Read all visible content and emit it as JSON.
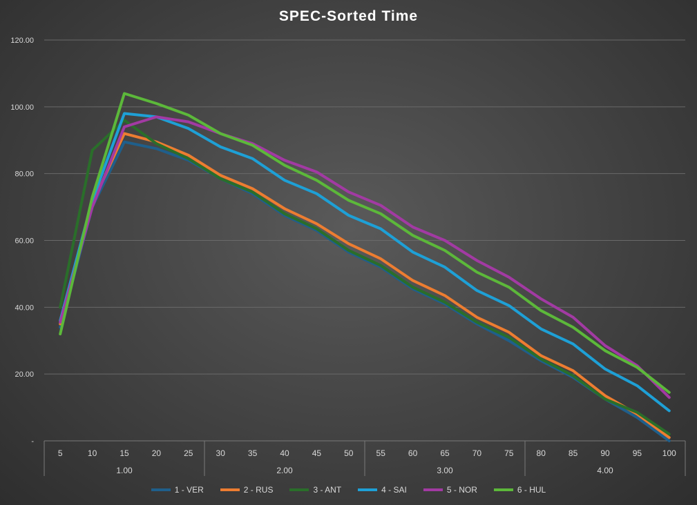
{
  "chart_data": {
    "type": "line",
    "title": "SPEC-Sorted Time",
    "xlabel": "",
    "ylabel": "",
    "ylim": [
      0,
      120
    ],
    "y_ticks": [
      "-",
      "20.00",
      "40.00",
      "60.00",
      "80.00",
      "100.00",
      "120.00"
    ],
    "categories": [
      "5",
      "10",
      "15",
      "20",
      "25",
      "30",
      "35",
      "40",
      "45",
      "50",
      "55",
      "60",
      "65",
      "70",
      "75",
      "80",
      "85",
      "90",
      "95",
      "100"
    ],
    "groups": [
      {
        "label": "1.00",
        "span": 5
      },
      {
        "label": "2.00",
        "span": 5
      },
      {
        "label": "3.00",
        "span": 5
      },
      {
        "label": "4.00",
        "span": 5
      }
    ],
    "grid": true,
    "legend_position": "bottom",
    "series": [
      {
        "name": "1 - VER",
        "color": "#1f5f8b",
        "values": [
          34,
          70,
          89.5,
          87.5,
          84,
          78.5,
          74,
          67.5,
          63,
          56.5,
          52,
          45.5,
          41,
          35,
          30,
          24,
          19,
          12.5,
          7,
          0
        ]
      },
      {
        "name": "2 - RUS",
        "color": "#ed7d31",
        "values": [
          35,
          71,
          92,
          89.5,
          85.5,
          79.5,
          75.5,
          69.5,
          65,
          59,
          54.5,
          48,
          43.5,
          37,
          32.5,
          25.5,
          21,
          13.5,
          8,
          1
        ]
      },
      {
        "name": "3 - ANT",
        "color": "#2a6e2a",
        "values": [
          40,
          87,
          96,
          89,
          84.5,
          78.5,
          74.5,
          68,
          63.5,
          57,
          52.5,
          46,
          41.5,
          35.5,
          31,
          24.5,
          19.5,
          12.5,
          8.5,
          2
        ]
      },
      {
        "name": "4 - SAI",
        "color": "#1ea0d6",
        "values": [
          36,
          72,
          98,
          97,
          93.5,
          88,
          84.5,
          78,
          74,
          67.5,
          63.5,
          56.5,
          52,
          45,
          40.5,
          33.5,
          29,
          21.5,
          16.5,
          9
        ]
      },
      {
        "name": "5 - NOR",
        "color": "#a23aa3",
        "values": [
          35.5,
          70,
          94,
          97,
          95.5,
          92,
          89,
          84,
          80.5,
          74.5,
          70.5,
          64,
          60,
          54,
          49,
          42.5,
          37,
          28.5,
          22.5,
          13
        ]
      },
      {
        "name": "6 - HUL",
        "color": "#5cb83a",
        "values": [
          32,
          73,
          104,
          101,
          97.5,
          92,
          88.5,
          82.5,
          78,
          72,
          68,
          61.5,
          57,
          50.5,
          46,
          39,
          34,
          27,
          22,
          14.5
        ]
      }
    ]
  }
}
